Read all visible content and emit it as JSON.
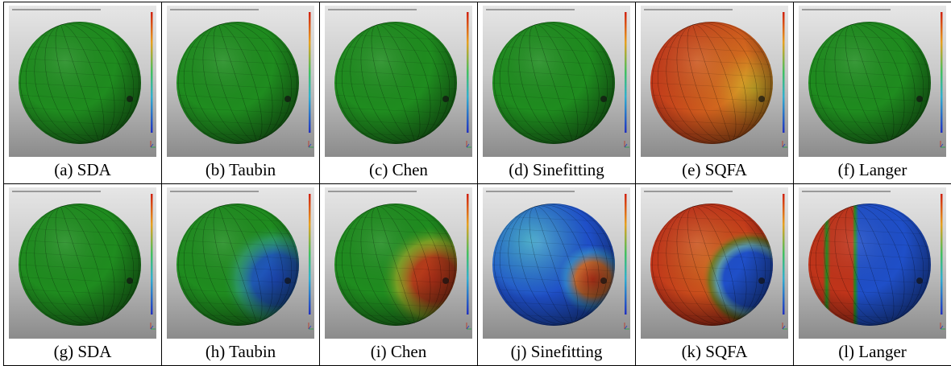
{
  "rows": [
    [
      {
        "caption": "(a) SDA",
        "colormap": "uniform-green"
      },
      {
        "caption": "(b) Taubin",
        "colormap": "uniform-green"
      },
      {
        "caption": "(c) Chen",
        "colormap": "uniform-green"
      },
      {
        "caption": "(d) Sinefitting",
        "colormap": "uniform-green"
      },
      {
        "caption": "(e) SQFA",
        "colormap": "orange-yellow"
      },
      {
        "caption": "(f) Langer",
        "colormap": "uniform-green"
      }
    ],
    [
      {
        "caption": "(g) SDA",
        "colormap": "uniform-green"
      },
      {
        "caption": "(h) Taubin",
        "colormap": "green-blue-spot"
      },
      {
        "caption": "(i) Chen",
        "colormap": "green-red-spot"
      },
      {
        "caption": "(j) Sinefitting",
        "colormap": "blue-cyan-red-spot"
      },
      {
        "caption": "(k) SQFA",
        "colormap": "orange-blue-spot"
      },
      {
        "caption": "(l) Langer",
        "colormap": "red-green-blue-bands"
      }
    ]
  ],
  "colors": {
    "green": "#1f8c1f",
    "blue": "#1f4fc8",
    "red": "#c0341a",
    "orange": "#d2691e",
    "yellow": "#d4b22a",
    "cyan": "#3fa7c9"
  }
}
